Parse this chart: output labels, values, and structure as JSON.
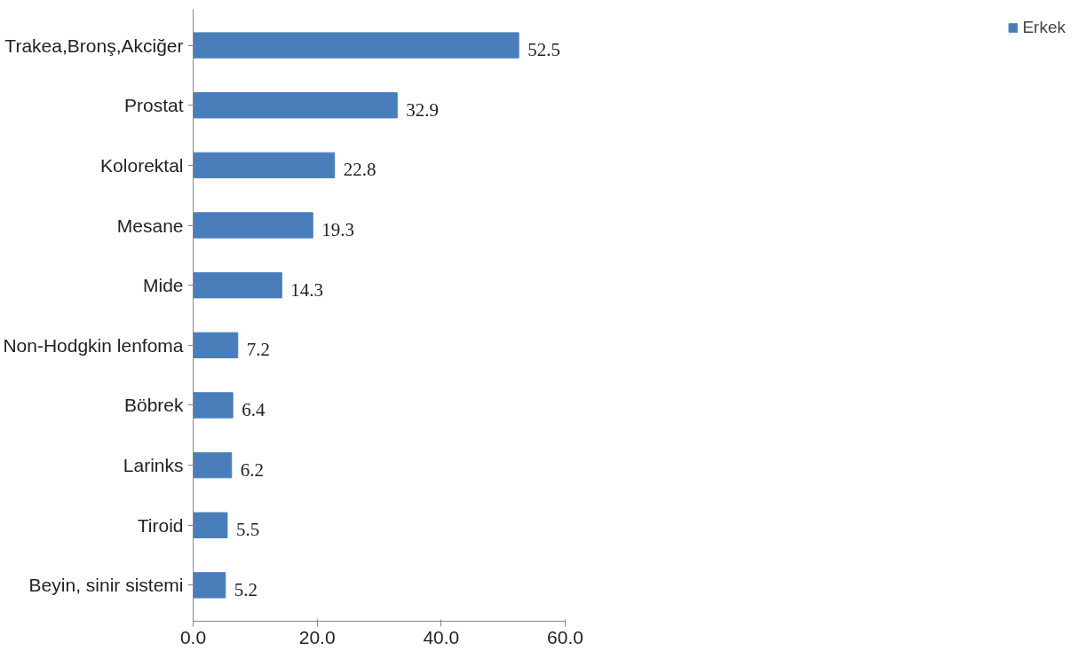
{
  "chart_data": {
    "type": "bar",
    "orientation": "horizontal",
    "categories": [
      "Trakea,Bronş,Akciğer",
      "Prostat",
      "Kolorektal",
      "Mesane",
      "Mide",
      "Non-Hodgkin lenfoma",
      "Böbrek",
      "Larinks",
      "Tiroid",
      "Beyin, sinir sistemi"
    ],
    "series": [
      {
        "name": "Erkek",
        "color": "#4a7ebb",
        "values": [
          52.5,
          32.9,
          22.8,
          19.3,
          14.3,
          7.2,
          6.4,
          6.2,
          5.5,
          5.2
        ]
      }
    ],
    "xlim": [
      0,
      60
    ],
    "xticks": [
      {
        "value": 0,
        "label": "0.0"
      },
      {
        "value": 20,
        "label": "20.0"
      },
      {
        "value": 40,
        "label": "40.0"
      },
      {
        "value": 60,
        "label": "60.0"
      }
    ],
    "data_labels": true,
    "grid": false,
    "legend": "right"
  }
}
